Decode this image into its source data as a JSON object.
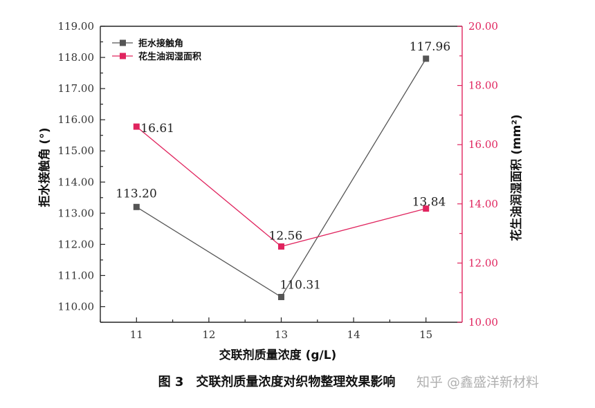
{
  "chart_data": {
    "type": "line",
    "x": [
      11,
      13,
      15
    ],
    "xlabel": "交联剂质量浓度 (g/L)",
    "xticks": [
      "11",
      "12",
      "13",
      "14",
      "15"
    ],
    "xlim": [
      10.5,
      15.5
    ],
    "left_axis": {
      "label": "拒水接触角 (°)",
      "ylim": [
        109.5,
        119.0
      ],
      "ticks": [
        "110.00",
        "111.00",
        "112.00",
        "113.00",
        "114.00",
        "115.00",
        "116.00",
        "117.00",
        "118.00",
        "119.00"
      ]
    },
    "right_axis": {
      "label": "花生油润湿面积 (mm²)",
      "ylim": [
        10.0,
        20.0
      ],
      "ticks": [
        "10.00",
        "12.00",
        "14.00",
        "16.00",
        "18.00",
        "20.00"
      ]
    },
    "series": [
      {
        "name": "拒水接触角",
        "axis": "left",
        "color": "#555555",
        "values": [
          113.2,
          110.31,
          117.96
        ],
        "labels": [
          "113.20",
          "110.31",
          "117.96"
        ]
      },
      {
        "name": "花生油润湿面积",
        "axis": "right",
        "color": "#e0245e",
        "values": [
          16.61,
          12.56,
          13.84
        ],
        "labels": [
          "16.61",
          "12.56",
          "13.84"
        ]
      }
    ],
    "legend": "top-left",
    "grid": false
  },
  "caption": "图 3　交联剂质量浓度对织物整理效果影响",
  "watermark": "知乎 @鑫盛洋新材料"
}
